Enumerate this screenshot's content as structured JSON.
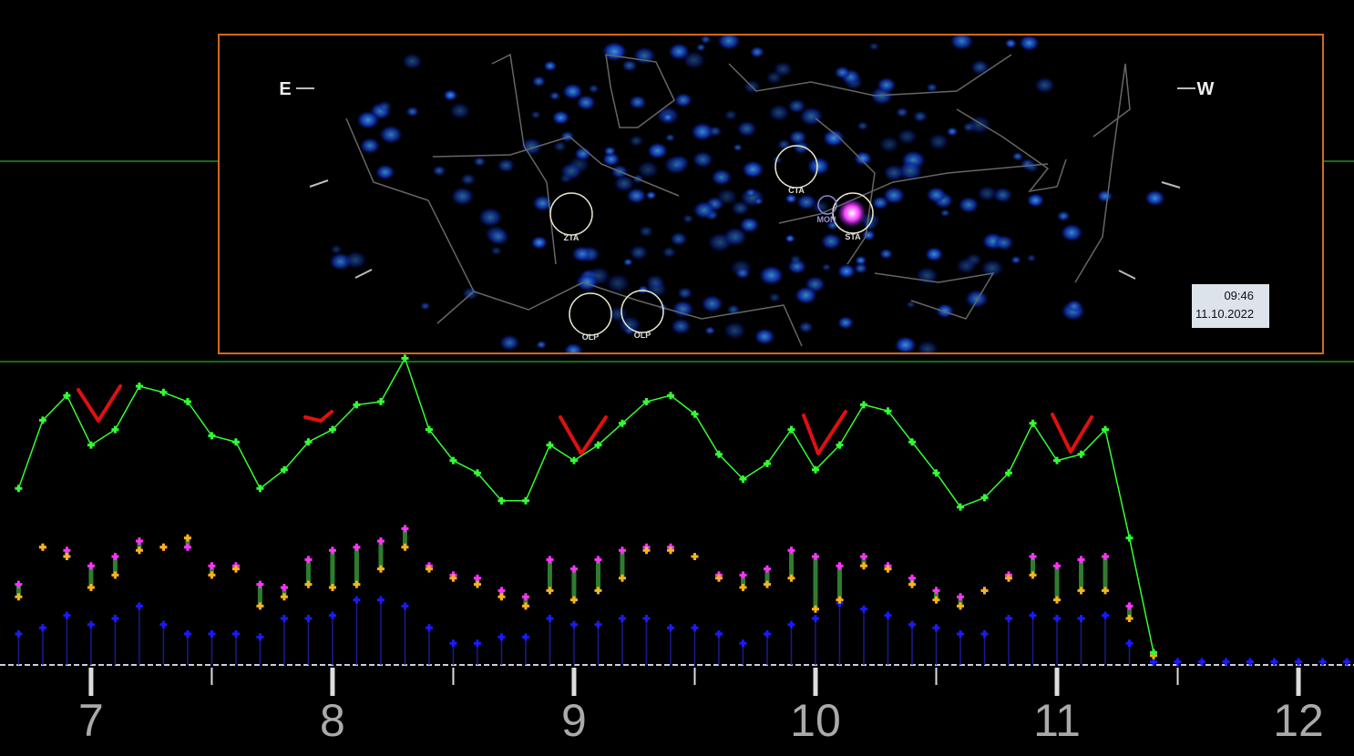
{
  "chart_data": {
    "type": "line",
    "x": [
      6.7,
      6.8,
      6.9,
      7.0,
      7.1,
      7.2,
      7.3,
      7.4,
      7.5,
      7.6,
      7.7,
      7.8,
      7.9,
      8.0,
      8.1,
      8.2,
      8.3,
      8.4,
      8.5,
      8.6,
      8.7,
      8.8,
      8.9,
      9.0,
      9.1,
      9.2,
      9.3,
      9.4,
      9.5,
      9.6,
      9.7,
      9.8,
      9.9,
      10.0,
      10.1,
      10.2,
      10.3,
      10.4,
      10.5,
      10.6,
      10.7,
      10.8,
      10.9,
      11.0,
      11.1,
      11.2,
      11.3,
      11.4,
      11.5,
      11.6,
      11.7,
      11.8,
      11.9,
      12.0,
      12.1,
      12.2
    ],
    "series": [
      {
        "color": "#33ff33",
        "style": "line",
        "values": [
          57,
          79,
          87,
          71,
          76,
          90,
          88,
          85,
          74,
          72,
          57,
          63,
          72,
          76,
          84,
          85,
          99,
          76,
          66,
          62,
          53,
          53,
          71,
          66,
          71,
          78,
          85,
          87,
          81,
          68,
          60,
          65,
          76,
          63,
          71,
          84,
          82,
          72,
          62,
          51,
          54,
          62,
          78,
          66,
          68,
          76,
          41,
          4,
          null,
          null,
          null,
          null,
          null,
          null,
          null,
          null
        ]
      },
      {
        "color": "#ff33ff",
        "style": "points",
        "values": [
          26,
          38,
          37,
          32,
          35,
          40,
          38,
          38,
          32,
          32,
          26,
          25,
          34,
          37,
          38,
          40,
          44,
          32,
          29,
          28,
          24,
          22,
          34,
          31,
          34,
          37,
          38,
          38,
          35,
          29,
          29,
          31,
          37,
          35,
          32,
          35,
          32,
          28,
          24,
          22,
          24,
          29,
          35,
          32,
          34,
          35,
          19,
          4,
          null,
          null,
          null,
          null,
          null,
          null,
          null,
          null
        ]
      },
      {
        "color": "#ffb31a",
        "style": "points",
        "values": [
          22,
          38,
          35,
          25,
          29,
          37,
          38,
          41,
          29,
          31,
          19,
          22,
          26,
          25,
          26,
          31,
          38,
          31,
          28,
          26,
          22,
          19,
          24,
          21,
          24,
          28,
          37,
          37,
          35,
          28,
          25,
          26,
          28,
          18,
          21,
          32,
          31,
          26,
          21,
          19,
          24,
          28,
          29,
          21,
          24,
          24,
          15,
          3,
          null,
          null,
          null,
          null,
          null,
          null,
          null,
          null
        ]
      },
      {
        "color": "#1a1aff",
        "style": "stems",
        "values": [
          10,
          12,
          16,
          13,
          15,
          19,
          13,
          10,
          10,
          10,
          9,
          15,
          15,
          16,
          21,
          21,
          19,
          12,
          7,
          7,
          9,
          9,
          15,
          13,
          13,
          15,
          15,
          12,
          12,
          10,
          7,
          10,
          13,
          15,
          20,
          18,
          16,
          13,
          12,
          10,
          10,
          15,
          16,
          15,
          15,
          16,
          7,
          1,
          1,
          1,
          1,
          1,
          1,
          1,
          1,
          1
        ]
      }
    ],
    "range_fill": "#2e7d2e",
    "xlim": [
      6.623,
      12.23
    ],
    "xticks": [
      7,
      8,
      9,
      10,
      11,
      12
    ],
    "xminorticks": [
      7.5,
      8.5,
      9.5,
      10.5,
      11.5
    ],
    "ylim": [
      0,
      100
    ]
  },
  "sky_view": {
    "east": "E",
    "west": "W",
    "time": "09:46",
    "date": "11.10.2022",
    "markers": [
      "CTA",
      "ZTA",
      "STA",
      "MON",
      "OLP",
      "OLP"
    ]
  }
}
